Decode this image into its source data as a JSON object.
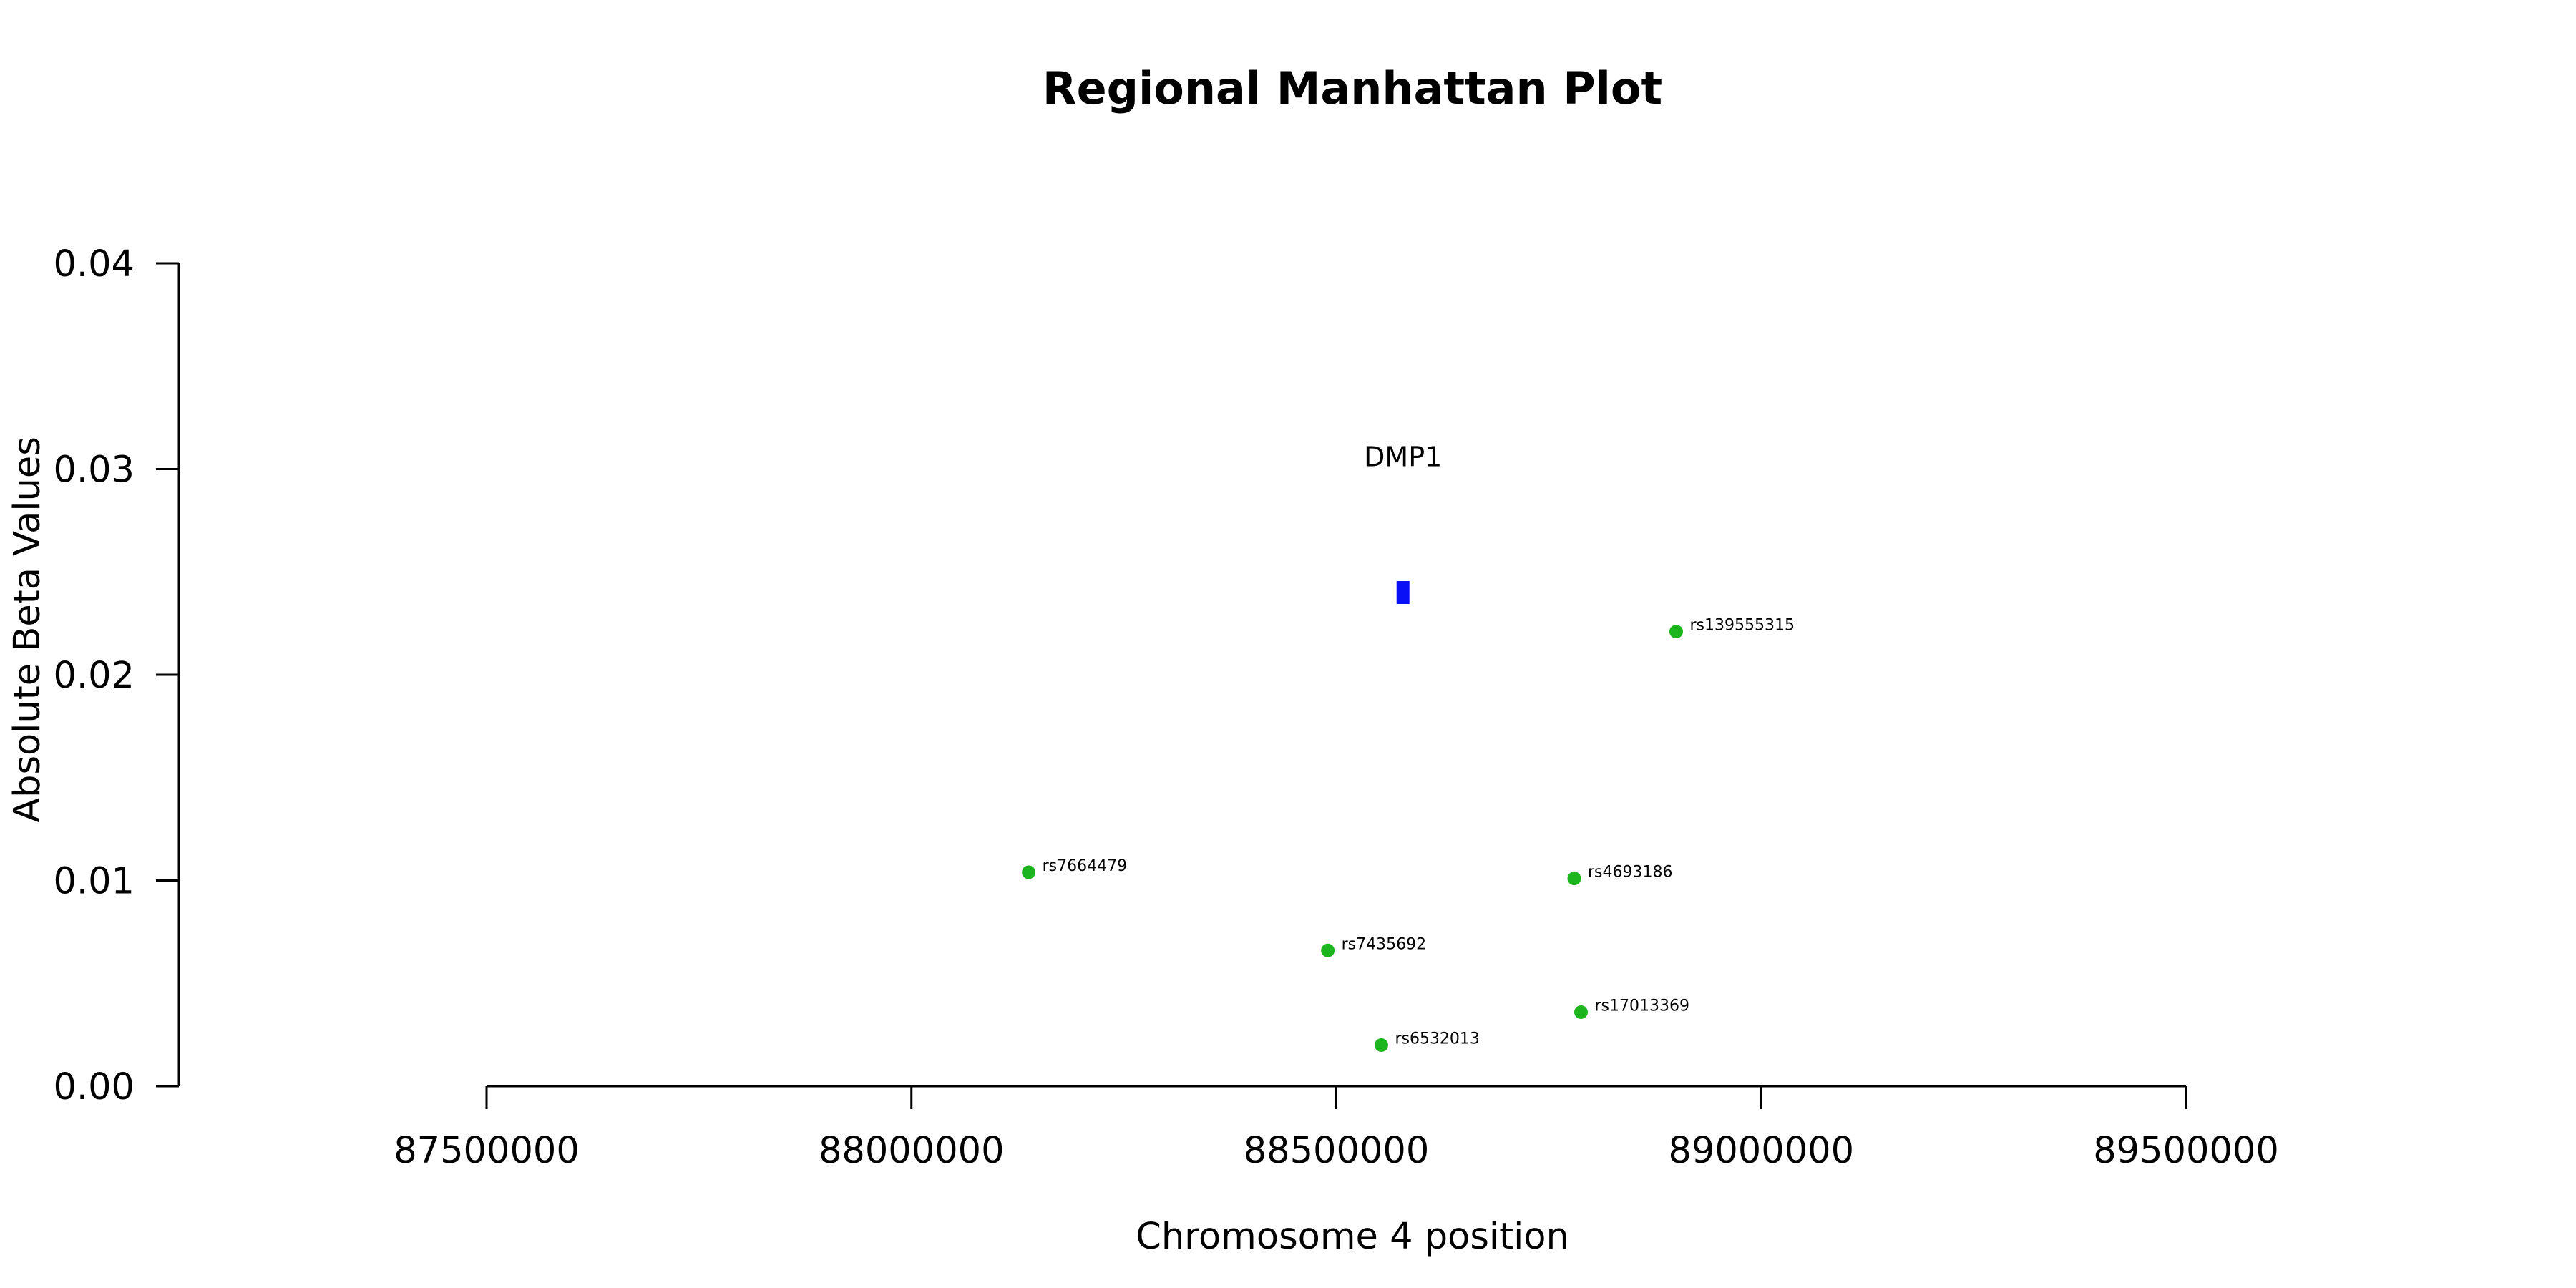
{
  "chart_data": {
    "type": "scatter",
    "title": "Regional Manhattan Plot",
    "xlabel": "Chromosome 4 position",
    "ylabel": "Absolute Beta Values",
    "xlim": [
      87500000,
      89500000
    ],
    "ylim": [
      0,
      0.04
    ],
    "x_ticks": [
      87500000,
      88000000,
      88500000,
      89000000,
      89500000
    ],
    "x_tick_labels": [
      "87500000",
      "88000000",
      "88500000",
      "89000000",
      "89500000"
    ],
    "y_ticks": [
      0,
      0.01,
      0.02,
      0.03,
      0.04
    ],
    "y_tick_labels": [
      "0.00",
      "0.01",
      "0.02",
      "0.03",
      "0.04"
    ],
    "grid": false,
    "points": [
      {
        "label": "rs139555315",
        "x": 88900000,
        "y": 0.0221
      },
      {
        "label": "rs7664479",
        "x": 88138000,
        "y": 0.0104
      },
      {
        "label": "rs4693186",
        "x": 88780000,
        "y": 0.0101
      },
      {
        "label": "rs7435692",
        "x": 88490000,
        "y": 0.0066
      },
      {
        "label": "rs17013369",
        "x": 88788000,
        "y": 0.0036
      },
      {
        "label": "rs6532013",
        "x": 88553000,
        "y": 0.002
      }
    ],
    "gene": {
      "name": "DMP1",
      "x_start": 88571000,
      "x_end": 88586000,
      "y": 0.024,
      "label_y": 0.0306
    },
    "colors": {
      "points": "#1db51d",
      "gene": "#0a10f5",
      "axis": "#000000"
    }
  }
}
